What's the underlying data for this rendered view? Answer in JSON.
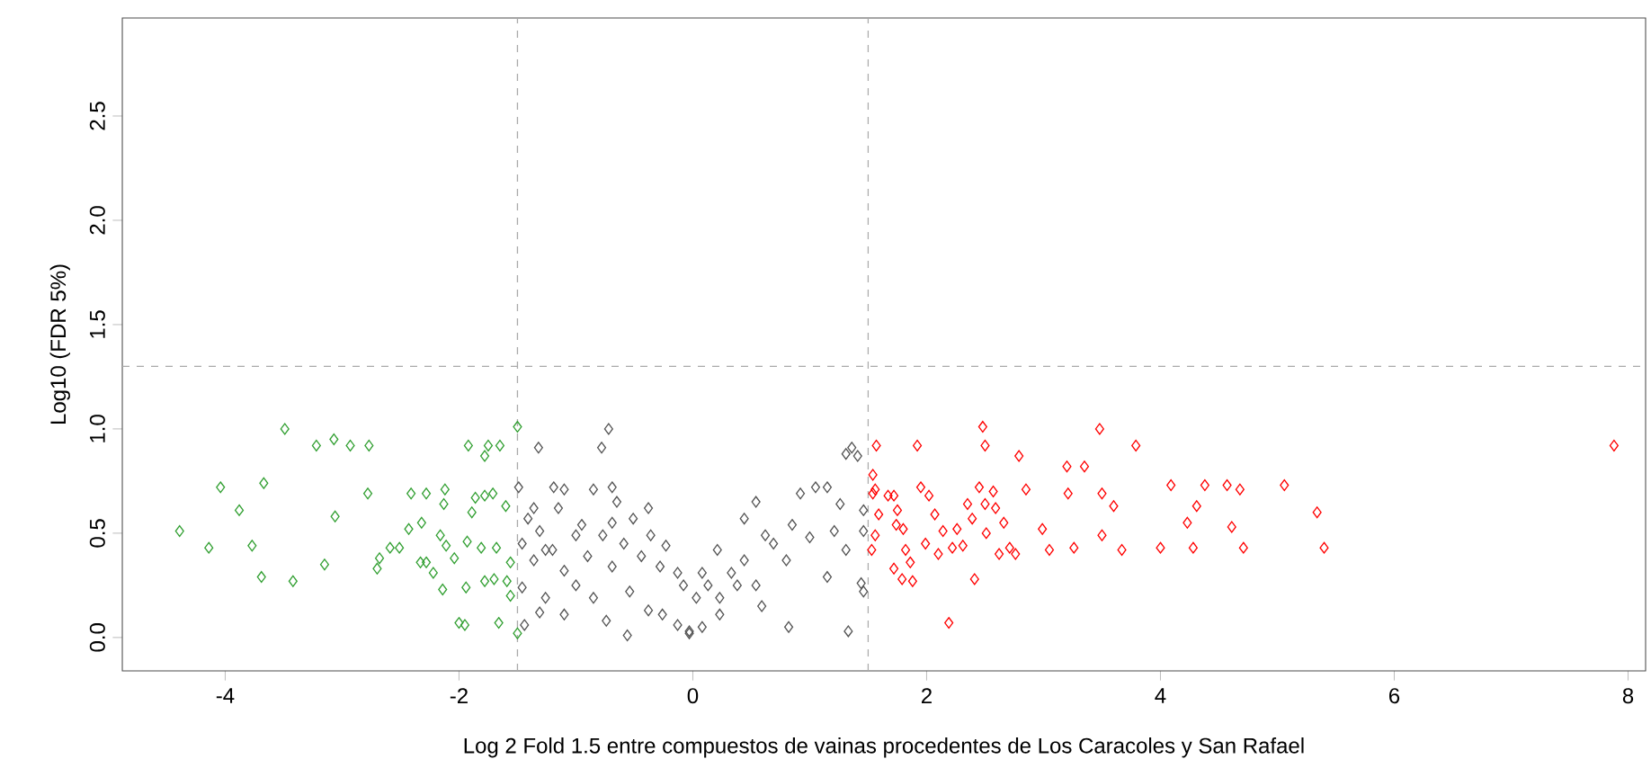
{
  "chart_data": {
    "type": "scatter",
    "xlabel": "Log 2 Fold 1.5 entre compuestos de vainas procedentes de Los Caracoles y San Rafael",
    "ylabel": "Log10 (FDR 5%)",
    "xlim": [
      -4.88,
      8.15
    ],
    "ylim": [
      -0.16,
      2.97
    ],
    "xticks": [
      -4,
      -2,
      0,
      2,
      4,
      6,
      8
    ],
    "yticks": [
      {
        "value": 0,
        "label": "0.0"
      },
      {
        "value": 0.5,
        "label": "0.5"
      },
      {
        "value": 1,
        "label": "1.0"
      },
      {
        "value": 1.5,
        "label": "1.5"
      },
      {
        "value": 2,
        "label": "2.0"
      },
      {
        "value": 2.5,
        "label": "2.5"
      }
    ],
    "marker": "diamond",
    "grid": false,
    "ref_lines": [
      {
        "axis": "x",
        "value": -1.5,
        "color": "#aaaaaa",
        "line_style": "dashed"
      },
      {
        "axis": "x",
        "value": 1.5,
        "color": "#aaaaaa",
        "line_style": "dashed"
      },
      {
        "axis": "y",
        "value": 1.3,
        "color": "#aaaaaa",
        "line_style": "dashed"
      }
    ],
    "series": [
      {
        "color": "#555555",
        "x": [
          -0.72,
          -1.32,
          -0.78,
          -1.49,
          -1.19,
          -1.1,
          -0.85,
          -0.69,
          -0.65,
          -0.38,
          -1.36,
          -1.41,
          -1.15,
          -0.95,
          -0.69,
          -0.51,
          -1.31,
          -1.0,
          -0.77,
          -0.36,
          -0.23,
          -1.26,
          -1.46,
          -0.59,
          -0.9,
          -0.44,
          -1.36,
          -1.1,
          -0.69,
          -0.28,
          -0.13,
          -1.46,
          -1.26,
          -1.0,
          -0.85,
          -0.54,
          -0.38,
          -0.26,
          -1.31,
          -1.1,
          -0.74,
          -0.56,
          -1.44,
          -0.13,
          -0.03,
          -1.2,
          -0.03,
          0.08,
          0.23,
          0.03,
          0.23,
          0.38,
          0.21,
          0.44,
          0.54,
          0.62,
          0.8,
          0.59,
          0.82,
          0.92,
          1.05,
          1.15,
          1.26,
          1.31,
          1.36,
          1.41,
          1.46,
          1.46,
          1.44,
          1.46,
          1.33,
          1.15,
          1.0,
          0.85,
          0.69,
          0.44,
          0.33,
          0.13,
          1.21,
          1.31,
          0.54,
          -0.08,
          0.08
        ],
        "values": [
          1.0,
          0.91,
          0.91,
          0.72,
          0.72,
          0.71,
          0.71,
          0.72,
          0.65,
          0.62,
          0.62,
          0.57,
          0.62,
          0.54,
          0.55,
          0.57,
          0.51,
          0.49,
          0.49,
          0.49,
          0.44,
          0.42,
          0.45,
          0.45,
          0.39,
          0.39,
          0.37,
          0.32,
          0.34,
          0.34,
          0.31,
          0.24,
          0.19,
          0.25,
          0.19,
          0.22,
          0.13,
          0.11,
          0.12,
          0.11,
          0.08,
          0.01,
          0.06,
          0.06,
          0.03,
          0.42,
          0.02,
          0.05,
          0.11,
          0.19,
          0.19,
          0.25,
          0.42,
          0.57,
          0.65,
          0.49,
          0.37,
          0.15,
          0.05,
          0.69,
          0.72,
          0.72,
          0.64,
          0.88,
          0.91,
          0.87,
          0.61,
          0.51,
          0.26,
          0.22,
          0.03,
          0.29,
          0.48,
          0.54,
          0.45,
          0.37,
          0.31,
          0.25,
          0.51,
          0.42,
          0.25,
          0.25,
          0.31
        ]
      },
      {
        "color": "#33a033",
        "x": [
          -4.39,
          -4.14,
          -4.04,
          -3.88,
          -3.77,
          -3.67,
          -3.69,
          -3.49,
          -3.42,
          -3.22,
          -3.15,
          -3.07,
          -3.06,
          -2.93,
          -2.78,
          -2.77,
          -2.7,
          -2.68,
          -2.59,
          -2.51,
          -2.43,
          -2.41,
          -2.32,
          -2.33,
          -2.28,
          -2.28,
          -2.22,
          -2.16,
          -2.13,
          -2.12,
          -2.11,
          -2.14,
          -2.0,
          -1.95,
          -1.92,
          -1.93,
          -1.86,
          -1.94,
          -1.78,
          -1.75,
          -1.65,
          -1.78,
          -1.71,
          -1.68,
          -1.78,
          -1.7,
          -1.66,
          -1.6,
          -1.59,
          -1.56,
          -1.56,
          -1.5,
          -1.5,
          -1.81,
          -1.89,
          -2.04
        ],
        "values": [
          0.51,
          0.43,
          0.72,
          0.61,
          0.44,
          0.74,
          0.29,
          1.0,
          0.27,
          0.92,
          0.35,
          0.95,
          0.58,
          0.92,
          0.69,
          0.92,
          0.33,
          0.38,
          0.43,
          0.43,
          0.52,
          0.69,
          0.55,
          0.36,
          0.69,
          0.36,
          0.31,
          0.49,
          0.64,
          0.71,
          0.44,
          0.23,
          0.07,
          0.06,
          0.92,
          0.46,
          0.67,
          0.24,
          0.87,
          0.92,
          0.92,
          0.68,
          0.69,
          0.43,
          0.27,
          0.28,
          0.07,
          0.63,
          0.27,
          0.36,
          0.2,
          1.01,
          0.02,
          0.43,
          0.6,
          0.38
        ]
      },
      {
        "color": "#ff0000",
        "x": [
          1.57,
          1.54,
          1.56,
          1.54,
          1.56,
          1.53,
          1.59,
          1.67,
          1.72,
          1.75,
          1.74,
          1.72,
          1.79,
          1.8,
          1.82,
          1.86,
          1.88,
          1.92,
          1.95,
          2.02,
          1.99,
          2.07,
          2.1,
          2.14,
          2.19,
          2.22,
          2.26,
          2.31,
          2.35,
          2.39,
          2.41,
          2.45,
          2.48,
          2.5,
          2.5,
          2.51,
          2.57,
          2.59,
          2.62,
          2.66,
          2.71,
          2.76,
          2.79,
          2.85,
          2.99,
          3.05,
          3.2,
          3.21,
          3.26,
          3.35,
          3.48,
          3.5,
          3.5,
          3.6,
          3.67,
          3.79,
          4.0,
          4.09,
          4.23,
          4.28,
          4.31,
          4.38,
          4.57,
          4.61,
          4.68,
          4.71,
          5.06,
          5.34,
          5.4,
          7.88
        ],
        "values": [
          0.92,
          0.78,
          0.71,
          0.69,
          0.49,
          0.42,
          0.59,
          0.68,
          0.68,
          0.61,
          0.54,
          0.33,
          0.28,
          0.52,
          0.42,
          0.36,
          0.27,
          0.92,
          0.72,
          0.68,
          0.45,
          0.59,
          0.4,
          0.51,
          0.07,
          0.43,
          0.52,
          0.44,
          0.64,
          0.57,
          0.28,
          0.72,
          1.01,
          0.92,
          0.64,
          0.5,
          0.7,
          0.62,
          0.4,
          0.55,
          0.43,
          0.4,
          0.87,
          0.71,
          0.52,
          0.42,
          0.82,
          0.69,
          0.43,
          0.82,
          1.0,
          0.69,
          0.49,
          0.63,
          0.42,
          0.92,
          0.43,
          0.73,
          0.55,
          0.43,
          0.63,
          0.73,
          0.73,
          0.53,
          0.71,
          0.43,
          0.73,
          0.6,
          0.43,
          0.92
        ]
      }
    ]
  }
}
